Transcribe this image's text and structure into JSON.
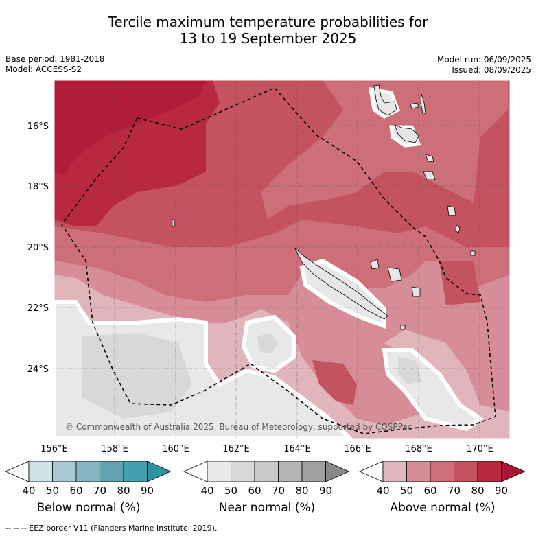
{
  "title_line1": "Tercile maximum temperature probabilities for",
  "title_line2": "13 to 19 September 2025",
  "base_period": "Base period: 1981-2018",
  "model": "Model: ACCESS-S2",
  "model_run": "Model run: 06/09/2025",
  "issued": "Issued: 08/09/2025",
  "lat_labels": [
    "16°S",
    "18°S",
    "20°S",
    "22°S",
    "24°S"
  ],
  "lon_labels": [
    "156°E",
    "158°E",
    "160°E",
    "162°E",
    "164°E",
    "166°E",
    "168°E",
    "170°E"
  ],
  "copyright": "© Commonwealth of Australia 2025, Bureau of Meteorology, supported by COSPPac",
  "colorbars": [
    {
      "label": "Below normal (%)",
      "ticks": [
        "40",
        "50",
        "60",
        "70",
        "80",
        "90"
      ],
      "colors": [
        "#ffffff",
        "#cde3e8",
        "#a8c9cf",
        "#86b5be",
        "#62a3b0",
        "#43a0b0",
        "#2f93a6"
      ]
    },
    {
      "label": "Near normal (%)",
      "ticks": [
        "40",
        "50",
        "60",
        "70",
        "80",
        "90"
      ],
      "colors": [
        "#ffffff",
        "#e8e8e8",
        "#d8d8d8",
        "#c8c8c8",
        "#b4b4b4",
        "#a0a0a0",
        "#888888"
      ]
    },
    {
      "label": "Above normal (%)",
      "ticks": [
        "40",
        "50",
        "60",
        "70",
        "80",
        "90"
      ],
      "colors": [
        "#ffffff",
        "#e0b5bb",
        "#d68d97",
        "#cc6f79",
        "#c4525f",
        "#b8283f",
        "#a81636"
      ]
    }
  ],
  "footer": "--  --  -- EEZ border V11 (Flanders Marine Institute, 2019)."
}
